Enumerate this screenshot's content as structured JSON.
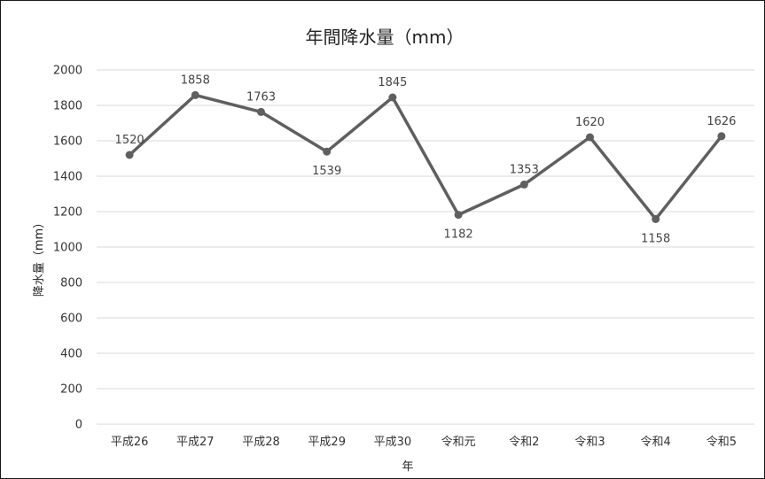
{
  "chart_data": {
    "type": "line",
    "title": "年間降水量（mm）",
    "xlabel": "年",
    "ylabel": "降水量（mm）",
    "categories": [
      "平成26",
      "平成27",
      "平成28",
      "平成29",
      "平成30",
      "令和元",
      "令和2",
      "令和3",
      "令和4",
      "令和5"
    ],
    "series": [
      {
        "values": [
          1520,
          1858,
          1763,
          1539,
          1845,
          1182,
          1353,
          1620,
          1158,
          1626
        ]
      }
    ],
    "ylim": [
      0,
      2000
    ],
    "yticks": [
      0,
      200,
      400,
      600,
      800,
      1000,
      1200,
      1400,
      1600,
      1800,
      2000
    ],
    "data_labels": [
      "1520",
      "1858",
      "1763",
      "1539",
      "1845",
      "1182",
      "1353",
      "1620",
      "1158",
      "1626"
    ],
    "grid": true,
    "legend": false,
    "colors": {
      "series": "#5f5f5f",
      "grid": "#d9d9d9"
    }
  }
}
